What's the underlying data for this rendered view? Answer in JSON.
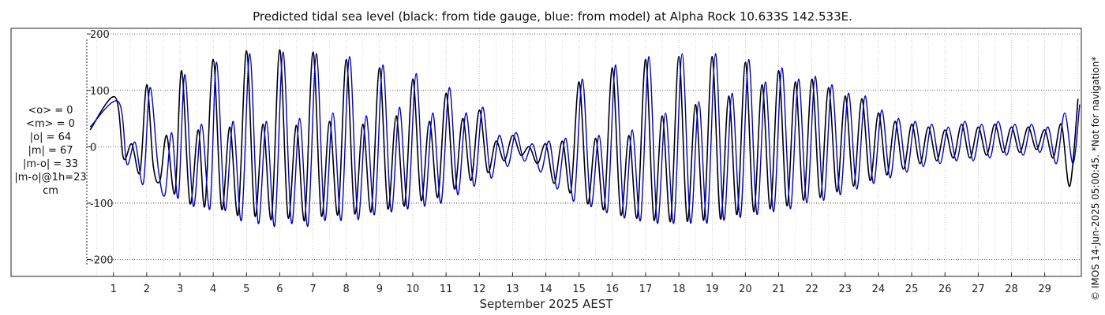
{
  "chart_data": {
    "type": "line",
    "title": "Predicted tidal sea level (black: from tide gauge, blue: from model) at Alpha Rock 10.633S 142.533E.",
    "xlabel": "September 2025 AEST",
    "ylabel": "",
    "xlim": [
      0.2,
      30.1
    ],
    "ylim": [
      -230,
      210
    ],
    "yticks": [
      200,
      100,
      0,
      -100,
      -200
    ],
    "xticks": [
      1,
      2,
      3,
      4,
      5,
      6,
      7,
      8,
      9,
      10,
      11,
      12,
      13,
      14,
      15,
      16,
      17,
      18,
      19,
      20,
      21,
      22,
      23,
      24,
      25,
      26,
      27,
      28,
      29
    ],
    "grid": true,
    "stats": [
      "<o> = 0",
      "<m> = 0",
      "|o| = 64",
      "|m| = 67",
      "|m-o| = 33",
      "|m-o|@1h=23",
      "cm"
    ],
    "copyright": "© IMOS 14-Jun-2025 05:00:45.  *Not for navigation*",
    "series": [
      {
        "name": "tide gauge",
        "color": "#000000",
        "x": [
          0.3,
          1.05,
          1.3,
          1.55,
          1.8,
          2.0,
          2.2,
          2.4,
          2.6,
          2.85,
          3.05,
          3.3,
          3.55,
          3.75,
          4.0,
          4.25,
          4.5,
          4.75,
          5.0,
          5.25,
          5.5,
          5.75,
          6.0,
          6.25,
          6.5,
          6.75,
          7.0,
          7.25,
          7.5,
          7.75,
          8.0,
          8.25,
          8.5,
          8.75,
          9.0,
          9.25,
          9.5,
          9.75,
          10.0,
          10.25,
          10.5,
          10.75,
          11.0,
          11.25,
          11.5,
          11.75,
          12.0,
          12.25,
          12.5,
          12.75,
          13.0,
          13.25,
          13.5,
          13.75,
          14.0,
          14.25,
          14.5,
          14.75,
          15.0,
          15.25,
          15.5,
          15.75,
          16.0,
          16.25,
          16.5,
          16.75,
          17.0,
          17.25,
          17.5,
          17.75,
          18.0,
          18.25,
          18.5,
          18.75,
          19.0,
          19.25,
          19.5,
          19.75,
          20.0,
          20.25,
          20.5,
          20.75,
          21.0,
          21.25,
          21.5,
          21.75,
          22.0,
          22.25,
          22.5,
          22.75,
          23.0,
          23.25,
          23.5,
          23.75,
          24.0,
          24.25,
          24.5,
          24.75,
          25.0,
          25.25,
          25.5,
          25.75,
          26.0,
          26.25,
          26.5,
          26.75,
          27.0,
          27.25,
          27.5,
          27.75,
          28.0,
          28.25,
          28.5,
          28.75,
          29.0,
          29.25,
          29.5,
          29.75,
          30.0
        ],
        "y": [
          30,
          88,
          -20,
          5,
          -45,
          110,
          -35,
          -60,
          20,
          -82,
          135,
          -100,
          30,
          -105,
          155,
          -110,
          35,
          -120,
          170,
          -122,
          40,
          -128,
          172,
          -125,
          38,
          -130,
          168,
          -122,
          45,
          -120,
          155,
          -118,
          40,
          -115,
          140,
          -110,
          55,
          -105,
          120,
          -95,
          45,
          -90,
          95,
          -75,
          50,
          -60,
          65,
          -45,
          10,
          -25,
          20,
          -15,
          0,
          -30,
          5,
          -65,
          10,
          -80,
          115,
          -100,
          15,
          -110,
          140,
          -120,
          20,
          -125,
          155,
          -130,
          55,
          -132,
          160,
          -132,
          75,
          -130,
          160,
          -128,
          90,
          -120,
          150,
          -115,
          110,
          -110,
          135,
          -105,
          115,
          -95,
          120,
          -90,
          105,
          -80,
          90,
          -70,
          85,
          -60,
          60,
          -50,
          45,
          -40,
          40,
          -30,
          35,
          -25,
          30,
          -20,
          40,
          -20,
          35,
          -15,
          40,
          -10,
          35,
          -10,
          35,
          -5,
          30,
          -20,
          40,
          -70,
          85
        ]
      },
      {
        "name": "model",
        "color": "#0000cc",
        "x": [
          0.3,
          1.15,
          1.4,
          1.65,
          1.9,
          2.1,
          2.35,
          2.55,
          2.75,
          2.95,
          3.15,
          3.4,
          3.65,
          3.9,
          4.1,
          4.35,
          4.6,
          4.85,
          5.1,
          5.35,
          5.6,
          5.85,
          6.1,
          6.35,
          6.6,
          6.85,
          7.1,
          7.35,
          7.6,
          7.85,
          8.1,
          8.35,
          8.6,
          8.85,
          9.1,
          9.35,
          9.6,
          9.85,
          10.1,
          10.35,
          10.6,
          10.85,
          11.1,
          11.35,
          11.6,
          11.85,
          12.1,
          12.35,
          12.6,
          12.85,
          13.1,
          13.35,
          13.6,
          13.85,
          14.1,
          14.35,
          14.6,
          14.85,
          15.1,
          15.35,
          15.6,
          15.85,
          16.1,
          16.35,
          16.6,
          16.85,
          17.1,
          17.35,
          17.6,
          17.85,
          18.1,
          18.35,
          18.6,
          18.85,
          19.1,
          19.35,
          19.6,
          19.85,
          20.1,
          20.35,
          20.6,
          20.85,
          21.1,
          21.35,
          21.6,
          21.85,
          22.1,
          22.35,
          22.6,
          22.85,
          23.1,
          23.35,
          23.6,
          23.85,
          24.1,
          24.35,
          24.6,
          24.85,
          25.1,
          25.35,
          25.6,
          25.85,
          26.1,
          26.35,
          26.6,
          26.85,
          27.1,
          27.35,
          27.6,
          27.85,
          28.1,
          28.35,
          28.6,
          28.85,
          29.1,
          29.35,
          29.6,
          29.85,
          30.05
        ],
        "y": [
          35,
          80,
          -30,
          8,
          -65,
          105,
          -40,
          -85,
          25,
          -90,
          128,
          -105,
          40,
          -110,
          150,
          -112,
          45,
          -130,
          165,
          -135,
          45,
          -140,
          168,
          -135,
          50,
          -140,
          165,
          -130,
          60,
          -130,
          160,
          -128,
          55,
          -120,
          145,
          -115,
          70,
          -110,
          130,
          -105,
          60,
          -100,
          105,
          -85,
          60,
          -70,
          70,
          -55,
          20,
          -35,
          25,
          -25,
          5,
          -45,
          10,
          -75,
          15,
          -95,
          120,
          -105,
          20,
          -115,
          145,
          -125,
          30,
          -130,
          160,
          -135,
          60,
          -135,
          165,
          -135,
          80,
          -135,
          165,
          -130,
          95,
          -125,
          155,
          -120,
          115,
          -115,
          140,
          -110,
          120,
          -100,
          125,
          -95,
          110,
          -85,
          95,
          -75,
          90,
          -65,
          65,
          -55,
          50,
          -45,
          45,
          -35,
          40,
          -30,
          35,
          -25,
          45,
          -25,
          40,
          -20,
          45,
          -15,
          40,
          -15,
          40,
          -10,
          35,
          -30,
          60,
          -30,
          75
        ]
      }
    ]
  }
}
